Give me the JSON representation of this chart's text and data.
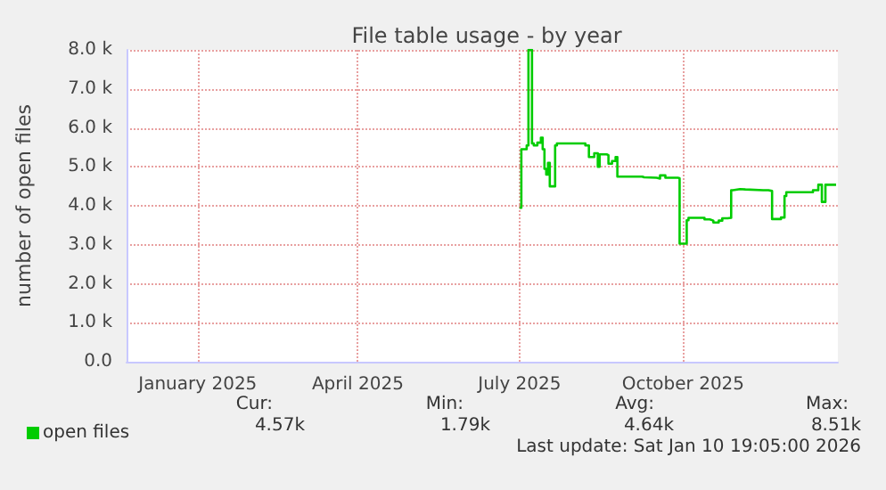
{
  "chart_data": {
    "type": "step",
    "title": "File table usage - by year",
    "ylabel": "number of open files",
    "xlim": [
      "2024-12-06",
      "2026-01-10"
    ],
    "xticks": [
      {
        "value": "2025-01-15",
        "label": "January 2025"
      },
      {
        "value": "2025-04-15",
        "label": "April 2025"
      },
      {
        "value": "2025-07-15",
        "label": "July 2025"
      },
      {
        "value": "2025-10-15",
        "label": "October 2025"
      }
    ],
    "ylim": [
      0,
      8000
    ],
    "yticks": [
      {
        "value": 0,
        "label": "0.0"
      },
      {
        "value": 1000,
        "label": "1.0 k"
      },
      {
        "value": 2000,
        "label": "2.0 k"
      },
      {
        "value": 3000,
        "label": "3.0 k"
      },
      {
        "value": 4000,
        "label": "4.0 k"
      },
      {
        "value": 5000,
        "label": "5.0 k"
      },
      {
        "value": 6000,
        "label": "6.0 k"
      },
      {
        "value": 7000,
        "label": "7.0 k"
      },
      {
        "value": 8000,
        "label": "8.0 k"
      }
    ],
    "grid": true,
    "legend": "bottom left",
    "marker": "none",
    "line_style": "solid",
    "x": [
      "2025-07-15",
      "2025-07-16",
      "2025-07-19",
      "2025-07-20",
      "2025-07-22",
      "2025-07-23",
      "2025-07-25",
      "2025-07-27",
      "2025-07-28",
      "2025-07-29",
      "2025-07-30",
      "2025-07-31",
      "2025-08-01",
      "2025-08-02",
      "2025-08-04",
      "2025-08-05",
      "2025-08-19",
      "2025-08-21",
      "2025-08-23",
      "2025-08-26",
      "2025-08-28",
      "2025-08-29",
      "2025-09-02",
      "2025-09-03",
      "2025-09-05",
      "2025-09-07",
      "2025-09-08",
      "2025-09-12",
      "2025-09-22",
      "2025-09-23",
      "2025-09-30",
      "2025-10-02",
      "2025-10-05",
      "2025-10-12",
      "2025-10-13",
      "2025-10-17",
      "2025-10-18",
      "2025-10-23",
      "2025-10-27",
      "2025-10-30",
      "2025-11-01",
      "2025-11-04",
      "2025-11-06",
      "2025-11-09",
      "2025-11-11",
      "2025-11-12",
      "2025-11-16",
      "2025-11-19",
      "2025-11-29",
      "2025-12-02",
      "2025-12-04",
      "2025-12-09",
      "2025-12-11",
      "2025-12-12",
      "2025-12-24",
      "2025-12-27",
      "2025-12-30",
      "2026-01-01",
      "2026-01-03",
      "2026-01-09"
    ],
    "series": [
      {
        "name": "open files",
        "color": "#00cc00",
        "values": [
          3950,
          5450,
          5550,
          8000,
          5600,
          5550,
          5620,
          5750,
          5450,
          4950,
          4800,
          5100,
          4500,
          4500,
          5550,
          5600,
          5600,
          5550,
          5250,
          5350,
          5000,
          5320,
          5300,
          5080,
          5150,
          5250,
          4750,
          4750,
          4730,
          4720,
          4700,
          4780,
          4720,
          4710,
          3030,
          3630,
          3690,
          3690,
          3650,
          3620,
          3570,
          3620,
          3680,
          3690,
          4400,
          4430,
          4420,
          4400,
          4400,
          4380,
          3660,
          3700,
          4250,
          4350,
          4350,
          4400,
          4540,
          4100,
          4540,
          4540
        ]
      }
    ],
    "annotations": [
      "Cur:",
      "4.57k",
      "Min:",
      "1.79k",
      "Avg:",
      "4.64k",
      "Max:",
      "8.51k",
      "Last update: Sat Jan 10 19:05:00 2026"
    ]
  }
}
